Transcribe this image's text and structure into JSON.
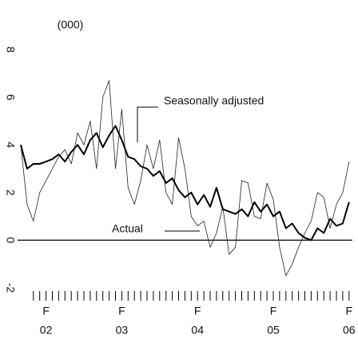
{
  "chart_data": {
    "type": "line",
    "unit_label": "(000)",
    "categories": [
      null,
      null,
      null,
      null,
      [
        "F",
        "02"
      ],
      null,
      null,
      null,
      null,
      null,
      null,
      null,
      null,
      null,
      null,
      null,
      [
        "F",
        "03"
      ],
      null,
      null,
      null,
      null,
      null,
      null,
      null,
      null,
      null,
      null,
      null,
      [
        "F",
        "04"
      ],
      null,
      null,
      null,
      null,
      null,
      null,
      null,
      null,
      null,
      null,
      null,
      [
        "F",
        "05"
      ],
      null,
      null,
      null,
      null,
      null,
      null,
      null,
      null,
      null,
      null,
      null,
      [
        "F",
        "06"
      ]
    ],
    "series": [
      {
        "name": "Seasonally adjusted",
        "color": "#000000",
        "width": 2,
        "values": [
          4.0,
          3.0,
          3.2,
          3.2,
          3.3,
          3.4,
          3.6,
          3.3,
          3.7,
          4.0,
          3.6,
          4.2,
          4.5,
          3.9,
          4.4,
          4.8,
          4.2,
          3.5,
          3.4,
          3.1,
          3.0,
          2.7,
          2.9,
          2.4,
          2.6,
          2.1,
          1.8,
          2.0,
          1.5,
          1.9,
          1.4,
          2.2,
          1.3,
          1.2,
          1.1,
          1.3,
          1.0,
          1.6,
          1.2,
          1.5,
          1.0,
          1.2,
          0.5,
          0.7,
          0.3,
          0.1,
          0.0,
          0.5,
          0.3,
          0.9,
          0.6,
          0.7,
          1.6
        ]
      },
      {
        "name": "Actual",
        "color": "#222222",
        "width": 0.8,
        "values": [
          4.0,
          1.5,
          0.8,
          2.0,
          2.5,
          3.0,
          3.5,
          3.8,
          3.2,
          4.5,
          4.0,
          5.0,
          3.0,
          6.0,
          6.7,
          3.0,
          5.5,
          2.2,
          1.5,
          2.5,
          4.0,
          3.0,
          4.2,
          2.0,
          1.5,
          4.3,
          3.0,
          1.0,
          0.6,
          0.8,
          -0.3,
          0.3,
          1.4,
          -0.6,
          -0.3,
          2.5,
          2.4,
          1.0,
          0.9,
          2.4,
          1.7,
          -0.3,
          -1.5,
          -1.0,
          -0.3,
          0.3,
          0.8,
          2.0,
          1.8,
          0.5,
          1.5,
          2.0,
          3.3
        ]
      }
    ],
    "ylim": [
      -2,
      8
    ],
    "yticks": [
      -2,
      0,
      2,
      4,
      6,
      8
    ]
  }
}
